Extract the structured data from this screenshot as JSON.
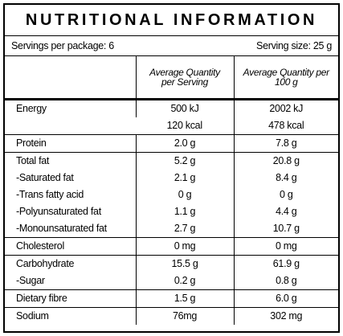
{
  "header": {
    "title": "NUTRITIONAL INFORMATION",
    "servings_per_package": "Servings per package: 6",
    "serving_size": "Serving size: 25 g"
  },
  "table": {
    "columns": [
      "Average Quantity per Serving",
      "Average Quantity per 100 g"
    ],
    "groups": [
      [
        {
          "label": "Energy",
          "per_serving": [
            "500 kJ",
            "120 kcal"
          ],
          "per_100g": [
            "2002 kJ",
            "478 kcal"
          ]
        }
      ],
      [
        {
          "label": "Protein",
          "per_serving": "2.0 g",
          "per_100g": "7.8 g"
        }
      ],
      [
        {
          "label": "Total fat",
          "per_serving": "5.2 g",
          "per_100g": "20.8 g"
        },
        {
          "label": "-Saturated fat",
          "per_serving": "2.1 g",
          "per_100g": "8.4 g"
        },
        {
          "label": "-Trans fatty acid",
          "per_serving": "0 g",
          "per_100g": "0 g"
        },
        {
          "label": "-Polyunsaturated fat",
          "per_serving": "1.1 g",
          "per_100g": "4.4 g"
        },
        {
          "label": "-Monounsaturated fat",
          "per_serving": "2.7 g",
          "per_100g": "10.7 g"
        }
      ],
      [
        {
          "label": "Cholesterol",
          "per_serving": "0 mg",
          "per_100g": "0 mg"
        }
      ],
      [
        {
          "label": "Carbohydrate",
          "per_serving": "15.5 g",
          "per_100g": "61.9 g"
        },
        {
          "label": "-Sugar",
          "per_serving": "0.2 g",
          "per_100g": "0.8 g"
        }
      ],
      [
        {
          "label": "Dietary fibre",
          "per_serving": "1.5 g",
          "per_100g": "6.0 g"
        }
      ],
      [
        {
          "label": "Sodium",
          "per_serving": "76mg",
          "per_100g": "302 mg"
        }
      ]
    ]
  }
}
